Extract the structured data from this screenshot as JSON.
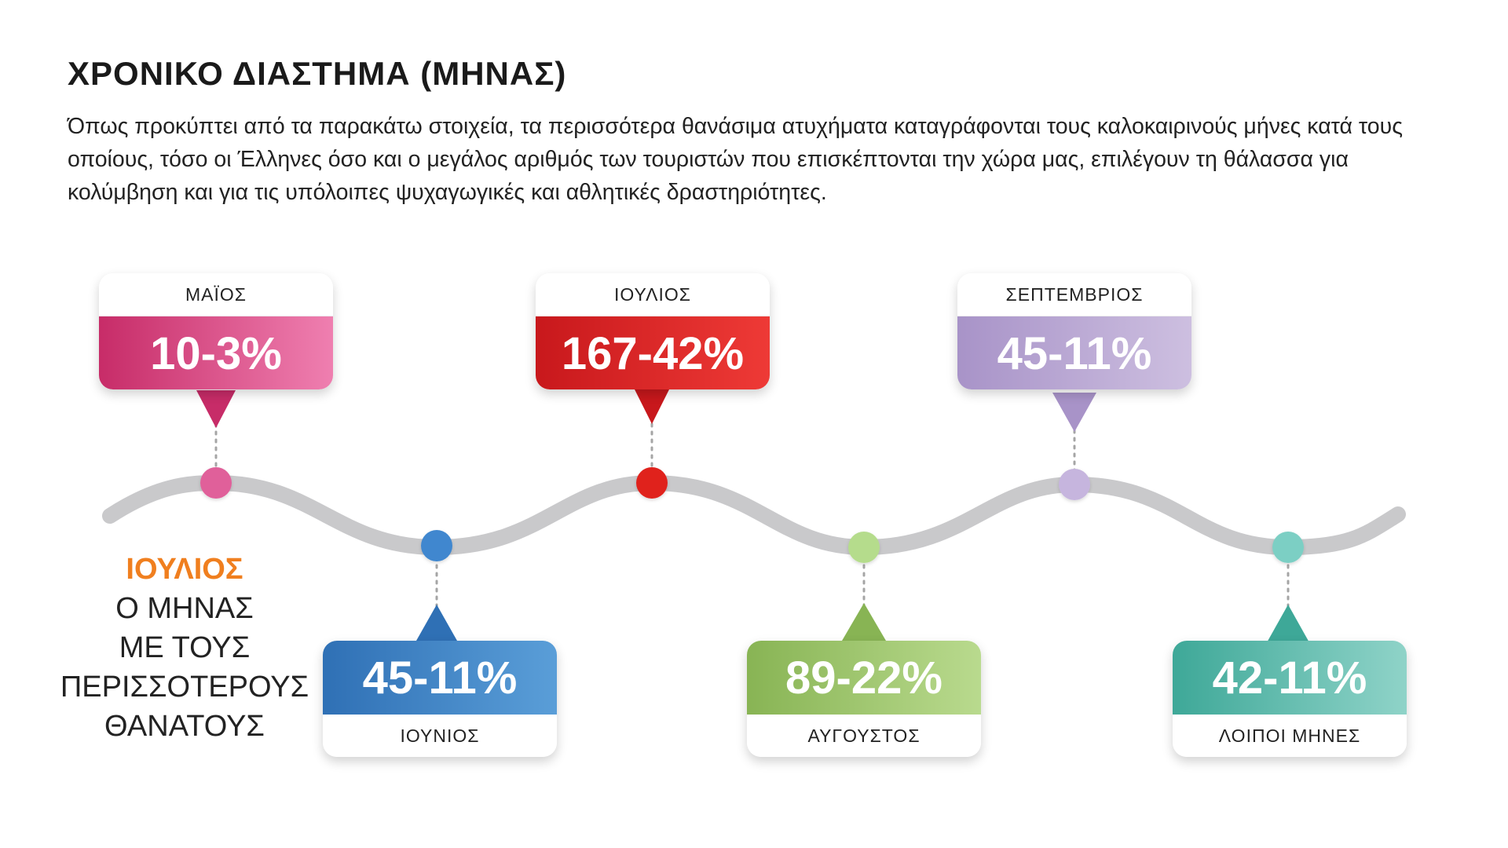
{
  "title": "ΧΡΟΝΙΚΟ ΔΙΑΣΤΗΜΑ (ΜΗΝΑΣ)",
  "intro": "Όπως προκύπτει από τα παρακάτω στοιχεία, τα περισσότερα θανάσιμα ατυχήματα καταγράφονται τους καλοκαιρινούς μήνες κατά τους οποίους, τόσο οι Έλληνες όσο και ο μεγάλος αριθμός των τουριστών που επισκέπτονται την χώρα μας, επιλέγουν τη θάλασσα για κολύμβηση και για τις υπόλοιπες ψυχαγωγικές και αθλητικές δραστηριότητες.",
  "highlight": {
    "month": "ΙΟΥΛΙΟΣ",
    "lines": [
      "Ο ΜΗΝΑΣ",
      "ΜΕ ΤΟΥΣ",
      "ΠΕΡΙΣΣΟΤΕΡΟΥΣ",
      "ΘΑΝΑΤΟΥΣ"
    ]
  },
  "months": [
    {
      "label": "ΜΑΪΟΣ",
      "value": "10-3%",
      "color_light": "#ef7fb0",
      "color_dark": "#c72c68"
    },
    {
      "label": "ΙΟΥΝΙΟΣ",
      "value": "45-11%",
      "color_light": "#5a9ed8",
      "color_dark": "#2f70b5"
    },
    {
      "label": "ΙΟΥΛΙΟΣ",
      "value": "167-42%",
      "color_light": "#ee3a36",
      "color_dark": "#c8181c"
    },
    {
      "label": "ΑΥΓΟΥΣΤΟΣ",
      "value": "89-22%",
      "color_light": "#b9da8e",
      "color_dark": "#88b454"
    },
    {
      "label": "ΣΕΠΤΕΜΒΡΙΟΣ",
      "value": "45-11%",
      "color_light": "#cdbfe0",
      "color_dark": "#a893c8"
    },
    {
      "label": "ΛΟΙΠΟΙ  ΜΗΝΕΣ",
      "value": "42-11%",
      "color_light": "#8fd3c8",
      "color_dark": "#3ea898"
    }
  ]
}
